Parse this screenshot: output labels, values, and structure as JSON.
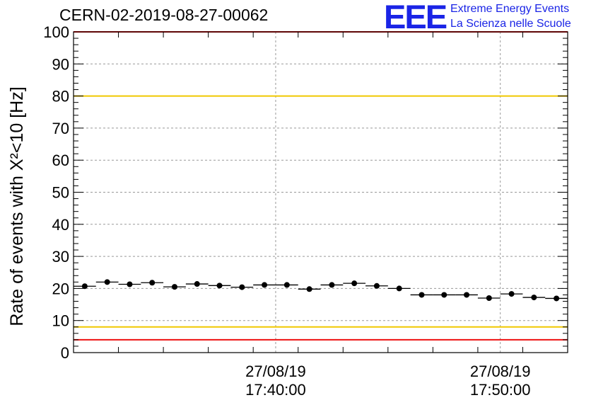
{
  "header": {
    "run_id": "CERN-02-2019-08-27-00062",
    "logo_text": "EEE",
    "logo_line1": "Extreme Energy Events",
    "logo_line2": "La Scienza nelle Scuole"
  },
  "colors": {
    "logo": "#1a24e6",
    "red_line": "#ee1111",
    "yellow_line": "#f0c800",
    "grid": "#999999",
    "marker": "#000000"
  },
  "chart_data": {
    "type": "scatter",
    "title": "CERN-02-2019-08-27-00062",
    "ylabel": "Rate of events with X²<10 [Hz]",
    "xlabel": "",
    "ylim": [
      0,
      100
    ],
    "y_ticks": [
      0,
      10,
      20,
      30,
      40,
      50,
      60,
      70,
      80,
      90,
      100
    ],
    "x_tick_labels": [
      {
        "date": "27/08/19",
        "time": "17:40:00"
      },
      {
        "date": "27/08/19",
        "time": "17:50:00"
      }
    ],
    "x_range": [
      "17:31:00",
      "17:53:00"
    ],
    "bin_width_min": 1,
    "grid": true,
    "reference_lines": [
      {
        "value": 80,
        "color": "yellow"
      },
      {
        "value": 8,
        "color": "yellow"
      },
      {
        "value": 4,
        "color": "red"
      },
      {
        "value": 100,
        "color": "red"
      }
    ],
    "series": [
      {
        "x": [
          "17:31:30",
          "17:32:30",
          "17:33:30",
          "17:34:30",
          "17:35:30",
          "17:36:30",
          "17:37:30",
          "17:38:30",
          "17:39:30",
          "17:40:30",
          "17:41:30",
          "17:42:30",
          "17:43:30",
          "17:44:30",
          "17:45:30",
          "17:46:30",
          "17:47:30",
          "17:48:30",
          "17:49:30",
          "17:50:30",
          "17:51:30",
          "17:52:30"
        ],
        "values": [
          20.7,
          22.0,
          21.3,
          21.8,
          20.5,
          21.4,
          20.9,
          20.4,
          21.1,
          21.1,
          19.8,
          21.1,
          21.6,
          20.8,
          20.0,
          18.0,
          18.0,
          18.0,
          17.0,
          18.3,
          17.2,
          16.9
        ]
      }
    ]
  }
}
